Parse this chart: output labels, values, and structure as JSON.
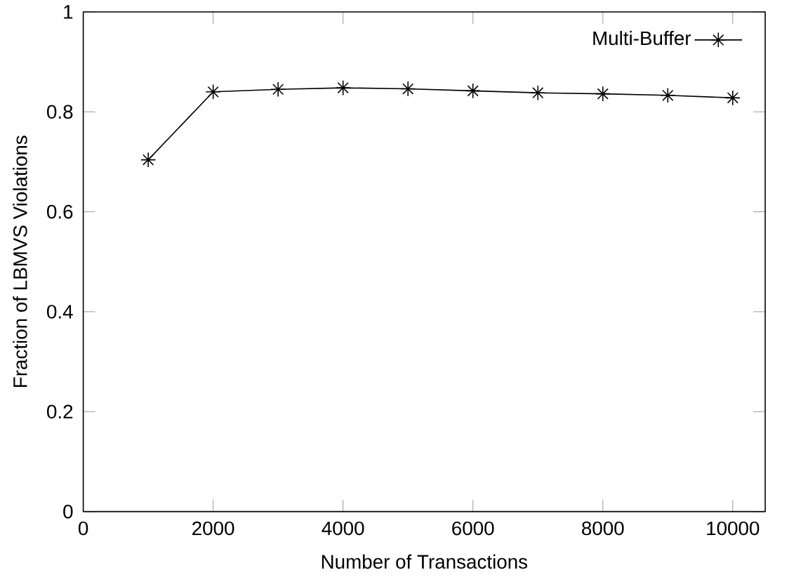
{
  "chart_data": {
    "type": "line",
    "xlabel": "Number of Transactions",
    "ylabel": "Fraction of LBMVS Violations",
    "x": [
      1000,
      2000,
      3000,
      4000,
      5000,
      6000,
      7000,
      8000,
      9000,
      10000
    ],
    "series": [
      {
        "name": "Multi-Buffer",
        "color": "#000000",
        "values": [
          0.704,
          0.84,
          0.845,
          0.848,
          0.846,
          0.842,
          0.838,
          0.836,
          0.833,
          0.828
        ]
      }
    ],
    "xlim": [
      0,
      10500
    ],
    "xticks": [
      0,
      2000,
      4000,
      6000,
      8000,
      10000
    ],
    "ylim": [
      0,
      1
    ],
    "yticks": [
      0,
      0.2,
      0.4,
      0.6,
      0.8,
      1
    ],
    "legend": "top right",
    "marker": "cross",
    "line_style": "solid"
  }
}
